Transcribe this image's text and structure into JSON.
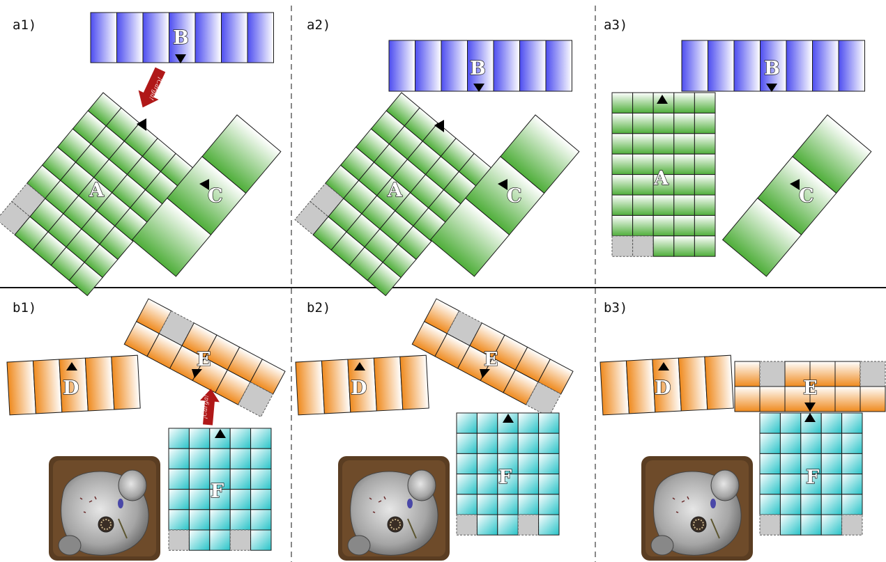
{
  "panels": {
    "a1": "a1)",
    "a2": "a2)",
    "a3": "a3)",
    "b1": "b1)",
    "b2": "b2)",
    "b3": "b3)"
  },
  "pieces": {
    "A": "A",
    "B": "B",
    "C": "C",
    "D": "D",
    "E": "E",
    "F": "F"
  },
  "arrow_caption": "¡Carga!",
  "colors": {
    "blue": "#4d4df0",
    "green": "#4fae3a",
    "orange": "#ef8a1e",
    "teal": "#27c3c8",
    "gray": "#c9c9c9",
    "red_arrow": "#b01818"
  },
  "icons": {
    "marker": "triangle-marker-icon",
    "arrow": "red-arrow-icon",
    "rock": "stone-tile-icon"
  }
}
